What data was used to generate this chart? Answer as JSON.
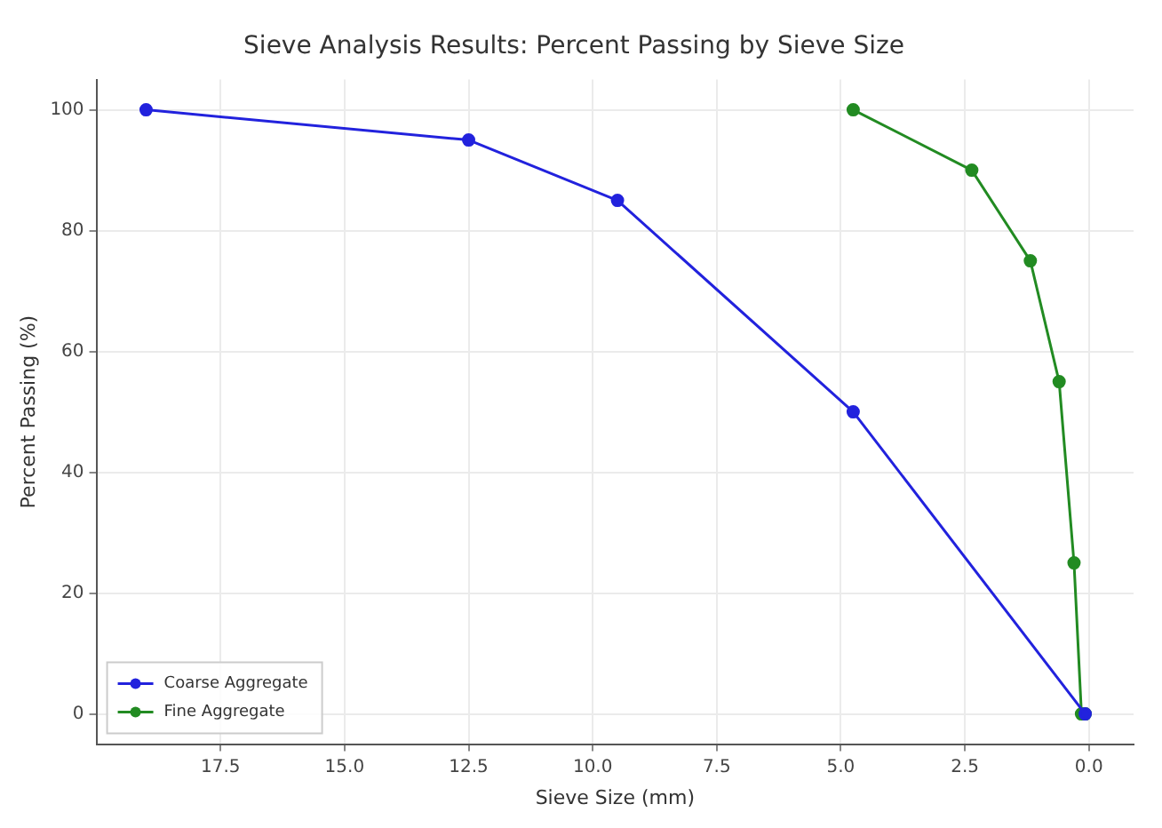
{
  "chart_data": {
    "type": "line",
    "title": "Sieve Analysis Results: Percent Passing by Sieve Size",
    "xlabel": "Sieve Size (mm)",
    "ylabel": "Percent Passing (%)",
    "series": [
      {
        "name": "Coarse Aggregate",
        "color": "#2222dd",
        "x": [
          19,
          12.5,
          9.5,
          4.75,
          0.075
        ],
        "values": [
          100,
          95,
          85,
          50,
          0
        ]
      },
      {
        "name": "Fine Aggregate",
        "color": "#228b22",
        "x": [
          4.75,
          2.36,
          1.18,
          0.6,
          0.3,
          0.15,
          0.075
        ],
        "values": [
          100,
          90,
          75,
          55,
          25,
          0,
          0
        ]
      }
    ],
    "xlim": [
      20,
      -0.9
    ],
    "xticks": [
      {
        "value": 17.5,
        "label": "17.5"
      },
      {
        "value": 15,
        "label": "15.0"
      },
      {
        "value": 12.5,
        "label": "12.5"
      },
      {
        "value": 10,
        "label": "10.0"
      },
      {
        "value": 7.5,
        "label": "7.5"
      },
      {
        "value": 5,
        "label": "5.0"
      },
      {
        "value": 2.5,
        "label": "2.5"
      },
      {
        "value": 0,
        "label": "0.0"
      }
    ],
    "ylim": [
      -5,
      105
    ],
    "yticks": [
      0,
      20,
      40,
      60,
      80,
      100
    ],
    "grid": true,
    "legend": "bottom left",
    "marker": "circle",
    "line_style": "solid"
  }
}
